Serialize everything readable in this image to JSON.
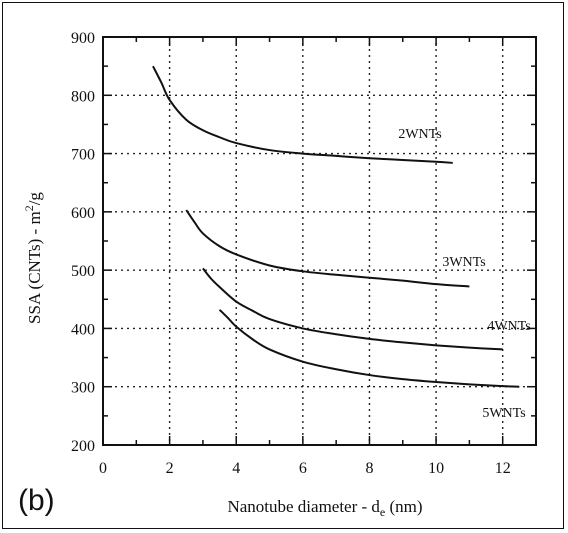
{
  "chart_data": {
    "type": "line",
    "panel_label": "(b)",
    "xlabel": "Nanotube diameter - d",
    "xlabel_sub": "e",
    "xlabel_unit": " (nm)",
    "ylabel": "SSA (CNTs)  -  m",
    "ylabel_sup": "2",
    "ylabel_unit": "/g",
    "xlim": [
      0,
      13
    ],
    "ylim": [
      200,
      900
    ],
    "xticks": [
      0,
      2,
      4,
      6,
      8,
      10,
      12
    ],
    "yticks": [
      200,
      300,
      400,
      500,
      600,
      700,
      800,
      900
    ],
    "grid": true,
    "series": [
      {
        "name": "2WNTs",
        "x": [
          1.5,
          1.75,
          2,
          2.5,
          3,
          3.5,
          4,
          5,
          6,
          7,
          8,
          9,
          10,
          10.5
        ],
        "y": [
          850,
          822,
          792,
          758,
          740,
          728,
          718,
          706,
          700,
          696,
          692,
          689,
          686,
          684
        ]
      },
      {
        "name": "3WNTs",
        "x": [
          2.5,
          2.75,
          3,
          3.5,
          4,
          5,
          6,
          7,
          8,
          9,
          10,
          11
        ],
        "y": [
          603,
          582,
          563,
          541,
          527,
          508,
          498,
          492,
          487,
          482,
          476,
          472
        ]
      },
      {
        "name": "4WNTs",
        "x": [
          3,
          3.25,
          3.5,
          4,
          4.5,
          5,
          6,
          7,
          8,
          9,
          10,
          11,
          12
        ],
        "y": [
          503,
          485,
          471,
          446,
          430,
          416,
          400,
          390,
          382,
          376,
          371,
          367,
          364
        ]
      },
      {
        "name": "5WNTs",
        "x": [
          3.5,
          3.75,
          4,
          4.5,
          5,
          6,
          7,
          8,
          9,
          10,
          11,
          12,
          12.5
        ],
        "y": [
          432,
          418,
          403,
          381,
          364,
          343,
          330,
          320,
          313,
          308,
          304,
          301,
          300
        ]
      }
    ]
  }
}
